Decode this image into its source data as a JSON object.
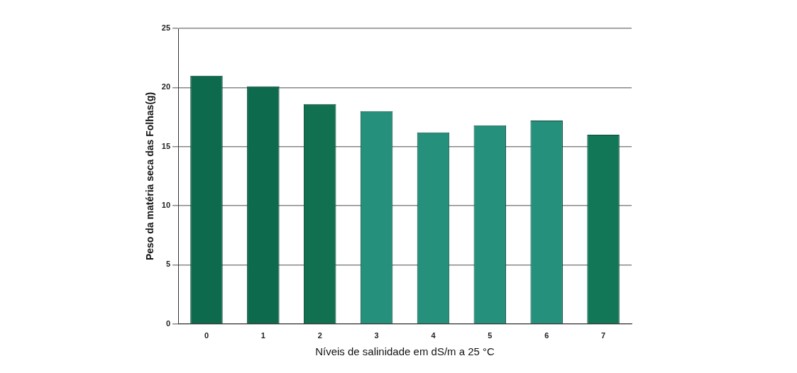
{
  "chart_data": {
    "type": "bar",
    "xlabel": "Níveis de salinidade em dS/m a 25 °C",
    "ylabel": "Peso da matéria seca das Folhas(g)",
    "categories": [
      "0",
      "1",
      "2",
      "3",
      "4",
      "5",
      "6",
      "7"
    ],
    "values": [
      21.0,
      20.1,
      18.6,
      18.0,
      16.2,
      16.8,
      17.2,
      16.0
    ],
    "colors": [
      "#0e6a4c",
      "#0e6a4c",
      "#11704f",
      "#25917d",
      "#25917d",
      "#25917d",
      "#25917d",
      "#117757"
    ],
    "ylim": [
      0,
      25
    ],
    "yticks": [
      0,
      5,
      10,
      15,
      20,
      25
    ],
    "grid": "y",
    "legend": false
  }
}
